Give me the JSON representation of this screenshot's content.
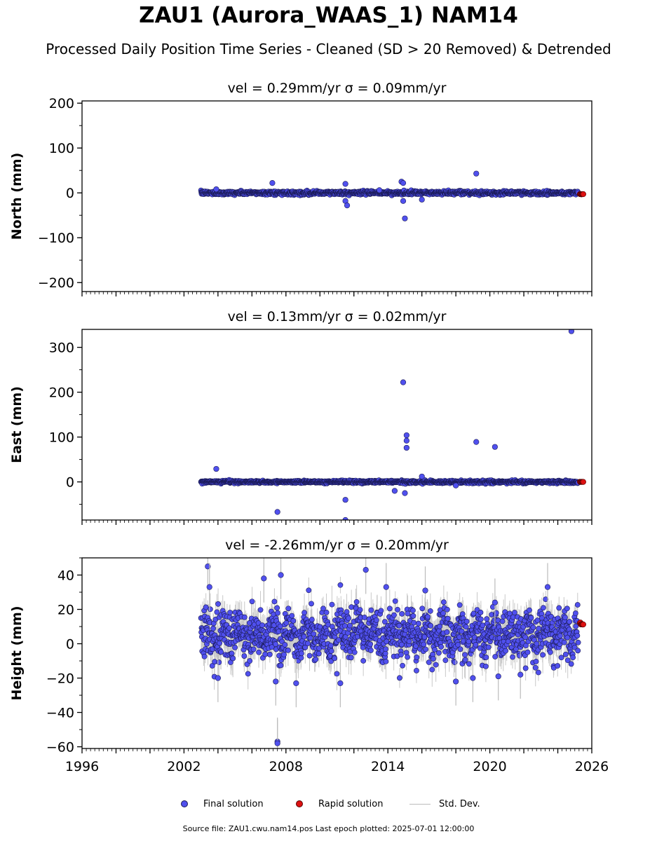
{
  "header": {
    "title": "ZAU1 (Aurora_WAAS_1) NAM14",
    "subtitle": "Processed Daily Position Time Series - Cleaned (SD > 20 Removed) & Detrended"
  },
  "legend": {
    "final": "Final solution",
    "rapid": "Rapid solution",
    "std": "Std. Dev."
  },
  "footer": {
    "text": "Source file: ZAU1.cwu.nam14.pos  Last epoch plotted: 2025-07-01 12:00:00"
  },
  "colors": {
    "final_fill": "#5050ee",
    "final_edge": "#1a1a55",
    "rapid_fill": "#dd1111",
    "std_line": "#bbbbbb"
  },
  "chart_data": [
    {
      "type": "scatter",
      "title": "vel = 0.29mm/yr   σ = 0.09mm/yr",
      "ylabel": "North (mm)",
      "xlim": [
        1996,
        2026
      ],
      "ylim": [
        -220,
        205
      ],
      "yticks": [
        -200,
        -100,
        0,
        100,
        200
      ],
      "yticklabels": [
        "−200",
        "−100",
        "0",
        "100",
        "200"
      ],
      "xticks": [
        1996,
        2002,
        2008,
        2014,
        2020,
        2026
      ],
      "xticklabels": [],
      "grid": false,
      "noise_sd_mm": 2,
      "series": [
        {
          "name": "Final solution",
          "x_start": 2003.0,
          "x_end": 2025.2
        },
        {
          "name": "Rapid solution",
          "x_start": 2025.3,
          "x_end": 2025.5,
          "y_mean": -3
        }
      ],
      "outliers": [
        {
          "x": 2003.9,
          "y": 8
        },
        {
          "x": 2007.2,
          "y": 22
        },
        {
          "x": 2011.5,
          "y": 20
        },
        {
          "x": 2011.5,
          "y": -18
        },
        {
          "x": 2011.6,
          "y": -28
        },
        {
          "x": 2014.8,
          "y": 25
        },
        {
          "x": 2014.9,
          "y": 22
        },
        {
          "x": 2014.9,
          "y": -18
        },
        {
          "x": 2015.0,
          "y": -57
        },
        {
          "x": 2016.0,
          "y": -15
        },
        {
          "x": 2019.2,
          "y": 43
        },
        {
          "x": 2013.5,
          "y": 6
        }
      ]
    },
    {
      "type": "scatter",
      "title": "vel = 0.13mm/yr   σ = 0.02mm/yr",
      "ylabel": "East (mm)",
      "xlim": [
        1996,
        2026
      ],
      "ylim": [
        -85,
        340
      ],
      "yticks": [
        0,
        100,
        200,
        300
      ],
      "yticklabels": [
        "0",
        "100",
        "200",
        "300"
      ],
      "xticks": [
        1996,
        2002,
        2008,
        2014,
        2020,
        2026
      ],
      "xticklabels": [],
      "grid": false,
      "noise_sd_mm": 1.5,
      "series": [
        {
          "name": "Final solution",
          "x_start": 2003.0,
          "x_end": 2025.2
        },
        {
          "name": "Rapid solution",
          "x_start": 2025.3,
          "x_end": 2025.5,
          "y_mean": 0
        }
      ],
      "outliers": [
        {
          "x": 2003.9,
          "y": 29
        },
        {
          "x": 2007.5,
          "y": -67
        },
        {
          "x": 2011.5,
          "y": -40
        },
        {
          "x": 2011.5,
          "y": -85
        },
        {
          "x": 2014.4,
          "y": -20
        },
        {
          "x": 2014.9,
          "y": 222
        },
        {
          "x": 2015.1,
          "y": 104
        },
        {
          "x": 2015.1,
          "y": 92
        },
        {
          "x": 2015.1,
          "y": 76
        },
        {
          "x": 2015.0,
          "y": -25
        },
        {
          "x": 2016.0,
          "y": 12
        },
        {
          "x": 2019.2,
          "y": 89
        },
        {
          "x": 2020.3,
          "y": 78
        },
        {
          "x": 2024.8,
          "y": 336
        },
        {
          "x": 2018.0,
          "y": -8
        }
      ]
    },
    {
      "type": "scatter",
      "title": "vel = -2.26mm/yr   σ = 0.20mm/yr",
      "ylabel": "Height (mm)",
      "xlim": [
        1996,
        2026
      ],
      "ylim": [
        -61,
        50
      ],
      "yticks": [
        -60,
        -40,
        -20,
        0,
        20,
        40
      ],
      "yticklabels": [
        "−60",
        "−40",
        "−20",
        "0",
        "20",
        "40"
      ],
      "xticks": [
        1996,
        2002,
        2008,
        2014,
        2020,
        2026
      ],
      "xticklabels": [
        "1996",
        "2002",
        "2008",
        "2014",
        "2020",
        "2026"
      ],
      "grid": false,
      "noise_sd_mm": 7,
      "series": [
        {
          "name": "Final solution",
          "x_start": 2003.0,
          "x_end": 2025.2
        },
        {
          "name": "Rapid solution",
          "x_start": 2025.3,
          "x_end": 2025.5,
          "y_mean": 12
        }
      ],
      "outliers": [
        {
          "x": 2003.4,
          "y": 45
        },
        {
          "x": 2003.5,
          "y": 33
        },
        {
          "x": 2004.0,
          "y": -20
        },
        {
          "x": 2006.7,
          "y": 38
        },
        {
          "x": 2007.4,
          "y": -22
        },
        {
          "x": 2007.5,
          "y": -57
        },
        {
          "x": 2007.5,
          "y": -58
        },
        {
          "x": 2007.7,
          "y": 40
        },
        {
          "x": 2008.6,
          "y": -23
        },
        {
          "x": 2011.2,
          "y": -23
        },
        {
          "x": 2012.7,
          "y": 43
        },
        {
          "x": 2013.9,
          "y": 33
        },
        {
          "x": 2016.2,
          "y": 31
        },
        {
          "x": 2018.0,
          "y": -22
        },
        {
          "x": 2019.0,
          "y": -20
        },
        {
          "x": 2020.3,
          "y": 24
        },
        {
          "x": 2020.5,
          "y": -19
        },
        {
          "x": 2021.8,
          "y": -18
        },
        {
          "x": 2023.4,
          "y": 33
        }
      ]
    }
  ]
}
